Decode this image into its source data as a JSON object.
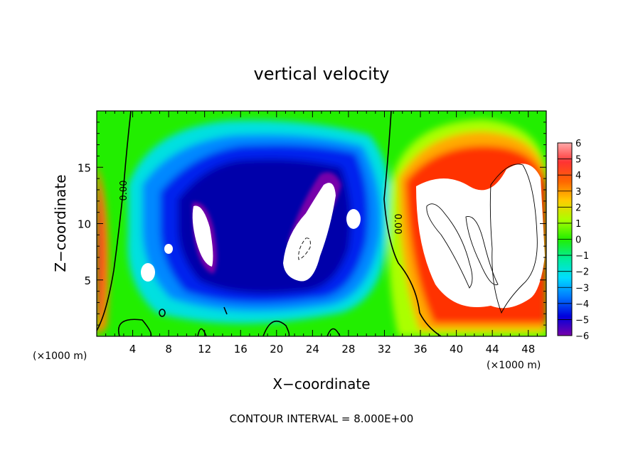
{
  "chart_data": {
    "type": "heatmap",
    "title": "vertical velocity",
    "xlabel": "X−coordinate",
    "ylabel": "Z−coordinate",
    "x_unit_left": "(×1000 m)",
    "x_unit_right": "(×1000 m)",
    "footer": "CONTOUR INTERVAL = 8.000E+00",
    "xlim": [
      0,
      50
    ],
    "ylim": [
      0,
      20
    ],
    "x_ticks": [
      4,
      8,
      12,
      16,
      20,
      24,
      28,
      32,
      36,
      40,
      44,
      48
    ],
    "y_ticks": [
      5,
      10,
      15
    ],
    "colorbar": {
      "ticks": [
        "6",
        "5",
        "4",
        "3",
        "2",
        "1",
        "0",
        "−1",
        "−2",
        "−3",
        "−4",
        "−5",
        "−6"
      ],
      "values": [
        6,
        5,
        4,
        3,
        2,
        1,
        0,
        -1,
        -2,
        -3,
        -4,
        -5,
        -6
      ],
      "colors": [
        "#ff9999",
        "#ff3333",
        "#ff0000",
        "#ff9900",
        "#ffee00",
        "#aaff00",
        "#33ee00",
        "#00ee88",
        "#00eeee",
        "#0099ff",
        "#0033ff",
        "#0000aa",
        "#7700aa"
      ]
    },
    "contour_labels": [
      "0.00",
      "0.00"
    ],
    "features": {
      "background": 0,
      "updraft_left_edge": 4,
      "downdraft_core": -5,
      "updraft_right": 5
    },
    "grid": false
  }
}
